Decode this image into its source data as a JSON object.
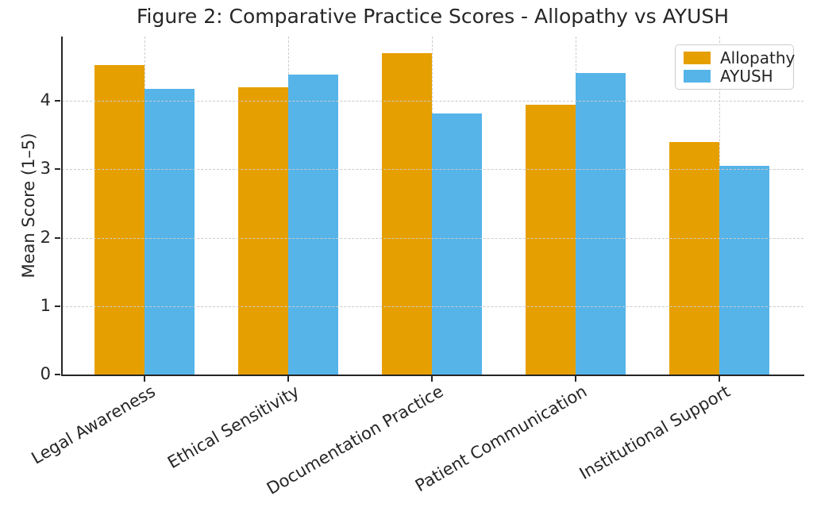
{
  "chart_data": {
    "type": "bar",
    "title": "Figure 2: Comparative Practice Scores - Allopathy vs AYUSH",
    "xlabel": "",
    "ylabel": "Mean Score (1–5)",
    "categories": [
      "Legal Awareness",
      "Ethical Sensitivity",
      "Documentation Practice",
      "Patient Communication",
      "Institutional Support"
    ],
    "series": [
      {
        "name": "Allopathy",
        "color": "#E69F00",
        "values": [
          4.52,
          4.2,
          4.7,
          3.94,
          3.4
        ]
      },
      {
        "name": "AYUSH",
        "color": "#56B4E9",
        "values": [
          4.17,
          4.38,
          3.81,
          4.41,
          3.05
        ]
      }
    ],
    "yticks": [
      0,
      1,
      2,
      3,
      4
    ],
    "ylim": [
      0,
      4.94
    ],
    "grid": true,
    "grid_style": "dashed",
    "legend_position": "upper-right",
    "style": {
      "background": "#ffffff",
      "text_color": "#262626",
      "spine_color": "#262626",
      "grid_color": "#cbcbcb"
    }
  }
}
